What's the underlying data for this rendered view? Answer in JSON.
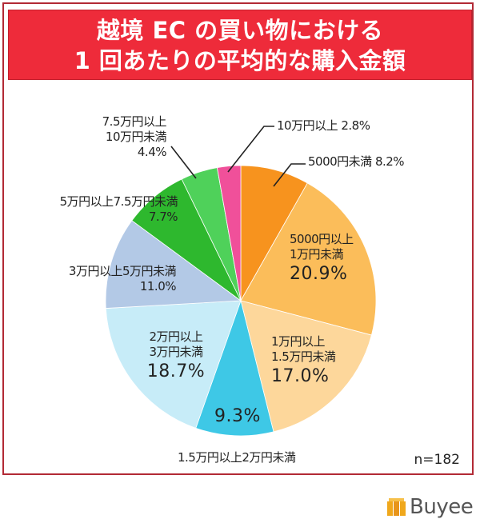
{
  "title": {
    "line1": "越境 EC の買い物における",
    "line2": "1 回あたりの平均的な購入金額"
  },
  "sample_size": "n=182",
  "brand": {
    "name": "Buyee",
    "icon": "box-logo-icon",
    "color": "#f0a81c"
  },
  "labels": {
    "s0": {
      "text": "5000円未満 8.2%"
    },
    "s1": {
      "line1": "5000円以上",
      "line2": "1万円未満",
      "pct": "20.9%"
    },
    "s2": {
      "line1": "1万円以上",
      "line2": "1.5万円未満",
      "pct": "17.0%"
    },
    "s3": {
      "pct": "9.3%",
      "name": "1.5万円以上2万円未満"
    },
    "s4": {
      "line1": "2万円以上",
      "line2": "3万円未満",
      "pct": "18.7%"
    },
    "s5": {
      "line1": "3万円以上5万円未満",
      "pct": "11.0%"
    },
    "s6": {
      "line1": "5万円以上7.5万円未満",
      "pct": "7.7%"
    },
    "s7": {
      "line1": "7.5万円以上",
      "line2": "10万円未満",
      "pct": "4.4%"
    },
    "s8": {
      "text": "10万円以上 2.8%"
    }
  },
  "chart_data": {
    "type": "pie",
    "title": "越境 EC の買い物における 1 回あたりの平均的な購入金額",
    "start_angle": "12 o'clock, clockwise",
    "categories": [
      "5000円未満",
      "5000円以上1万円未満",
      "1万円以上1.5万円未満",
      "1.5万円以上2万円未満",
      "2万円以上3万円未満",
      "3万円以上5万円未満",
      "5万円以上7.5万円未満",
      "7.5万円以上10万円未満",
      "10万円以上"
    ],
    "values": [
      8.2,
      20.9,
      17.0,
      9.3,
      18.7,
      11.0,
      7.7,
      4.4,
      2.8
    ],
    "unit": "%",
    "colors": [
      "#f7931e",
      "#fbbd5a",
      "#fdd79b",
      "#3ec8e6",
      "#c7ecf8",
      "#b3c9e6",
      "#2eb82e",
      "#4fd15a",
      "#f0509a"
    ],
    "annotations": [
      "n=182"
    ],
    "legend": "none (direct labels)"
  }
}
